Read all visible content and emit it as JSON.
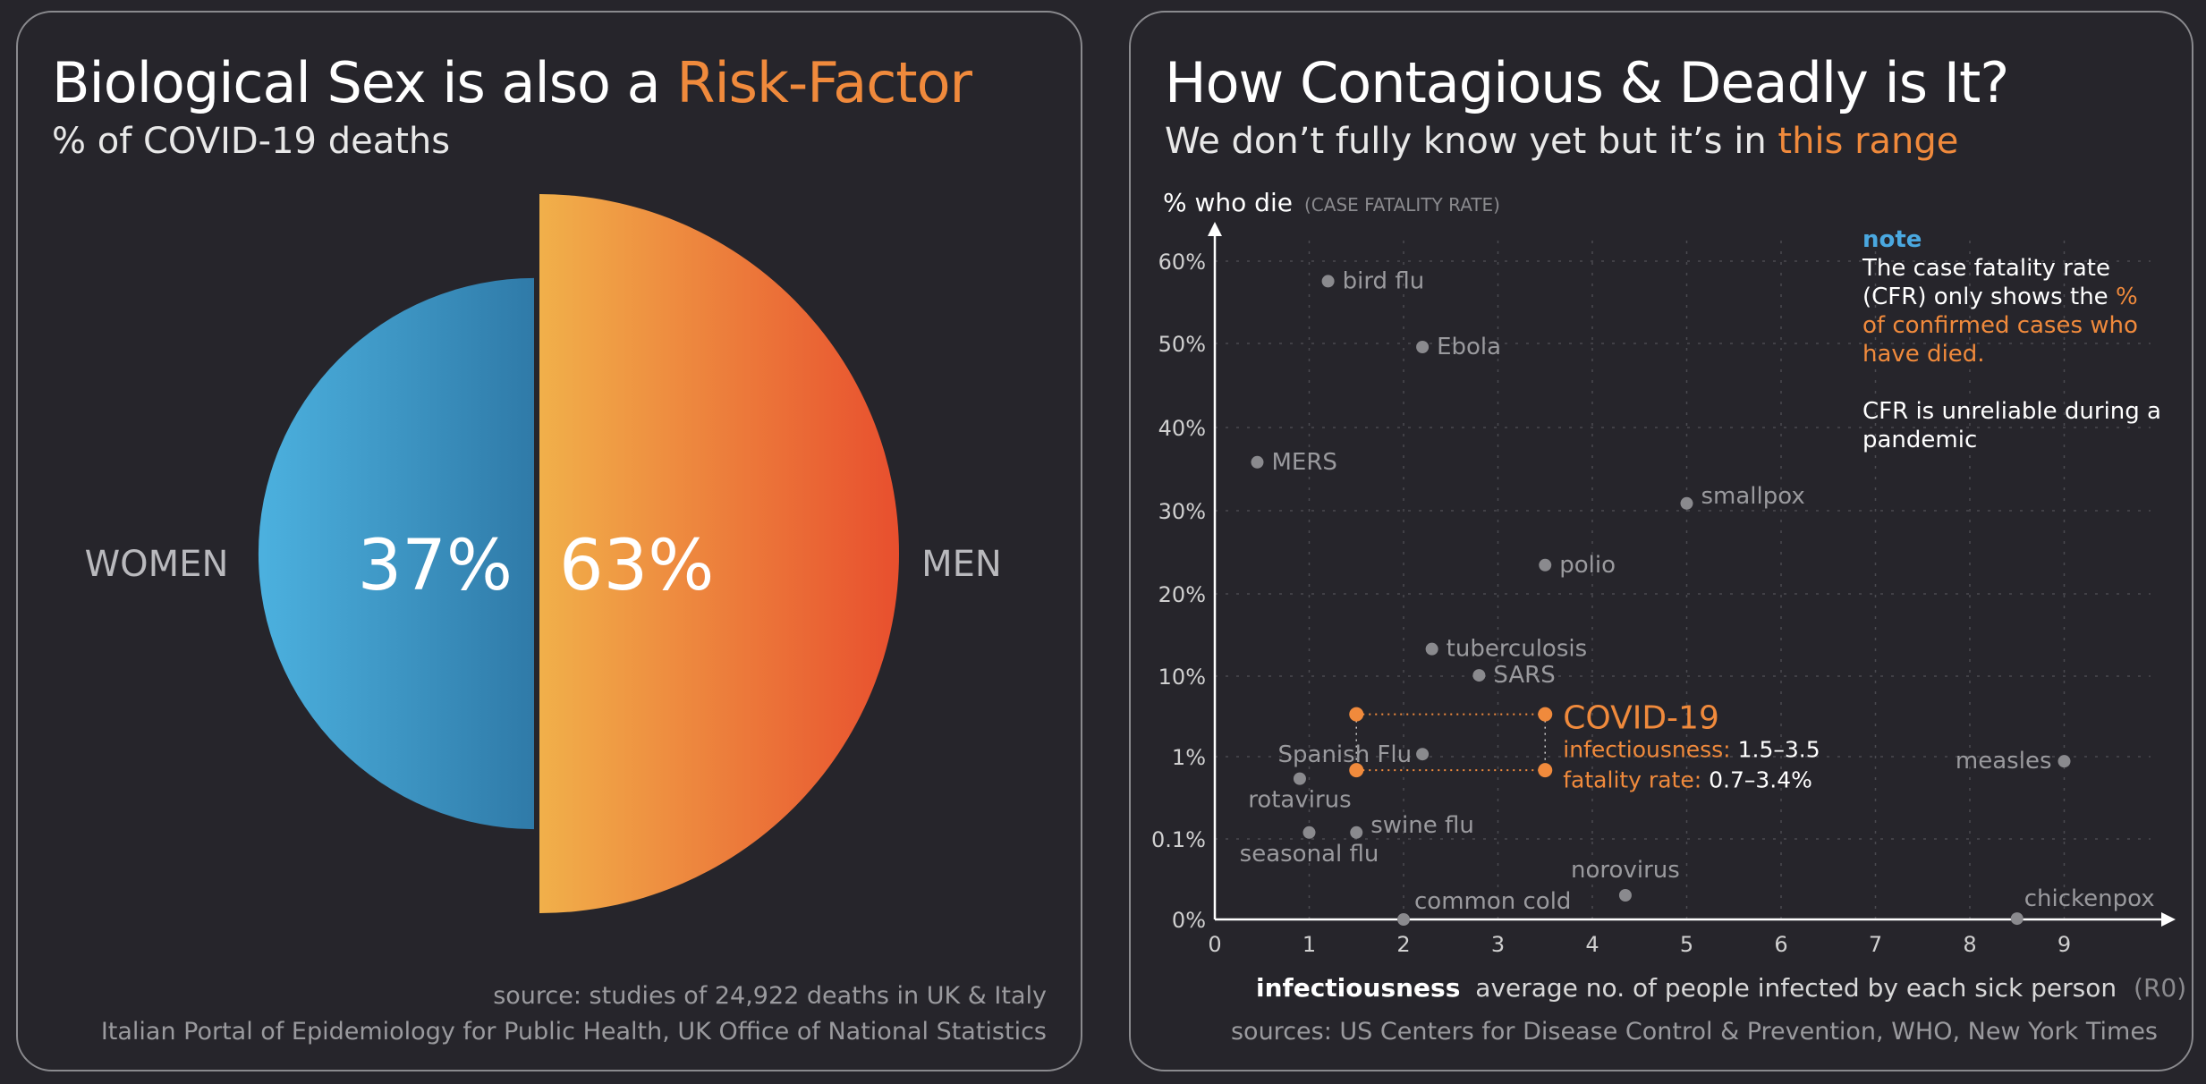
{
  "colors": {
    "accent": "#f08a3c",
    "women_start": "#4cb1df",
    "women_end": "#2f7aa8",
    "men_start": "#f1b04a",
    "men_end": "#e84f2e",
    "point_gray": "#8a8a8e",
    "note_blue": "#4aa8e0",
    "background": "#26252b"
  },
  "left": {
    "title_main": "Biological Sex is also a ",
    "title_accent": "Risk-Factor",
    "subtitle": "% of COVID-19 deaths",
    "source_line1": "source: studies of 24,922 deaths in UK & Italy",
    "source_line2": "Italian Portal of Epidemiology for Public Health, UK Office of National Statistics"
  },
  "right": {
    "title": "How Contagious & Deadly is It?",
    "subtitle_main": "We don’t fully know yet but it’s in ",
    "subtitle_accent": "this range",
    "note_head": "note",
    "note_line1": "The case fatality rate (CFR) only shows the ",
    "note_accent": "% of confirmed cases who have died.",
    "note_line2": "CFR is unreliable during a pandemic",
    "source": "sources: US Centers for Disease Control & Prevention, WHO, New York Times"
  },
  "chart_data": [
    {
      "type": "pie",
      "title": "Biological Sex is also a Risk-Factor",
      "subtitle": "% of COVID-19 deaths",
      "categories": [
        "WOMEN",
        "MEN"
      ],
      "values": [
        37,
        63
      ],
      "value_labels": [
        "37%",
        "63%"
      ]
    },
    {
      "type": "scatter",
      "title": "How Contagious & Deadly is It?",
      "subtitle": "We don’t fully know yet but it’s in this range",
      "xlabel_bold": "infectiousness",
      "xlabel_rest": "average no. of people infected by each sick person",
      "xlabel_suffix": "(R0)",
      "ylabel": "% who die",
      "ylabel_note": "(CASE FATALITY RATE)",
      "xlim": [
        0,
        10
      ],
      "x_ticks": [
        0,
        1,
        2,
        3,
        4,
        5,
        6,
        7,
        8,
        9
      ],
      "y_ticks": [
        "0%",
        "0.1%",
        "1%",
        "10%",
        "20%",
        "30%",
        "40%",
        "50%",
        "60%"
      ],
      "y_scale": "mixed (0%, 0.1%, 1% then linear 10%-60%)",
      "grid": true,
      "points": [
        {
          "name": "bird flu",
          "x": 1.2,
          "y": 58
        },
        {
          "name": "Ebola",
          "x": 2.2,
          "y": 50
        },
        {
          "name": "MERS",
          "x": 0.45,
          "y": 36
        },
        {
          "name": "smallpox",
          "x": 5.0,
          "y": 31
        },
        {
          "name": "polio",
          "x": 3.5,
          "y": 23.5
        },
        {
          "name": "tuberculosis",
          "x": 2.3,
          "y": 13.3
        },
        {
          "name": "SARS",
          "x": 2.8,
          "y": 10.1
        },
        {
          "name": "Spanish Flu",
          "x": 2.2,
          "y": 1.1
        },
        {
          "name": "measles",
          "x": 9.0,
          "y": 0.9
        },
        {
          "name": "rotavirus",
          "x": 0.9,
          "y": 0.55
        },
        {
          "name": "seasonal flu",
          "x": 1.0,
          "y": 0.12
        },
        {
          "name": "swine flu",
          "x": 1.5,
          "y": 0.12
        },
        {
          "name": "norovirus",
          "x": 4.35,
          "y": 0.03
        },
        {
          "name": "common cold",
          "x": 2.0,
          "y": 0
        },
        {
          "name": "chickenpox",
          "x": 8.5,
          "y": 0.001
        }
      ],
      "covid": {
        "name": "COVID-19",
        "infectiousness_label": "infectiousness:",
        "infectiousness_value": "1.5–3.5",
        "fatality_label": "fatality rate:",
        "fatality_value": "0.7–3.4%",
        "x_range": [
          1.5,
          3.5
        ],
        "y_range": [
          0.7,
          3.4
        ]
      }
    }
  ]
}
